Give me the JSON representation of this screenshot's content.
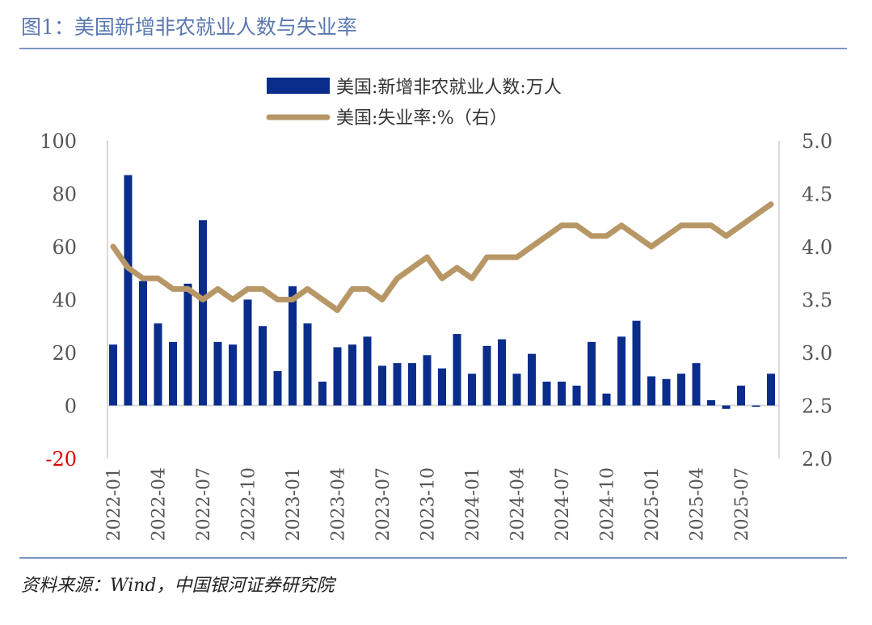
{
  "title": "图1：美国新增非农就业人数与失业率",
  "source": "资料来源：Wind，中国银河证券研究院",
  "chart_data": {
    "type": "bar+line",
    "legend": [
      "美国:新增非农就业人数:万人",
      "美国:失业率:%（右）"
    ],
    "legend_placement": "top",
    "categories": [
      "2022-01",
      "2022-02",
      "2022-03",
      "2022-04",
      "2022-05",
      "2022-06",
      "2022-07",
      "2022-08",
      "2022-09",
      "2022-10",
      "2022-11",
      "2022-12",
      "2023-01",
      "2023-02",
      "2023-03",
      "2023-04",
      "2023-05",
      "2023-06",
      "2023-07",
      "2023-08",
      "2023-09",
      "2023-10",
      "2023-11",
      "2023-12",
      "2024-01",
      "2024-02",
      "2024-03",
      "2024-04",
      "2024-05",
      "2024-06",
      "2024-07",
      "2024-08",
      "2024-09",
      "2024-10",
      "2024-11",
      "2024-12",
      "2025-01",
      "2025-02",
      "2025-03",
      "2025-04",
      "2025-05",
      "2025-06",
      "2025-07",
      "2025-08",
      "2025-09"
    ],
    "tick_labels": [
      "2022-01",
      "2022-04",
      "2022-07",
      "2022-10",
      "2023-01",
      "2023-04",
      "2023-07",
      "2023-10",
      "2024-01",
      "2024-04",
      "2024-07",
      "2024-10",
      "2025-01",
      "2025-04",
      "2025-07"
    ],
    "series": [
      {
        "name": "美国:新增非农就业人数:万人",
        "type": "bar",
        "axis": "left",
        "color": "#0a2d8c",
        "values": [
          23,
          87,
          47,
          31,
          24,
          46,
          70,
          24,
          23,
          40,
          30,
          13,
          45,
          31,
          9,
          22,
          23,
          26,
          15,
          16,
          16,
          19,
          14,
          27,
          12,
          22.5,
          25,
          12,
          19.5,
          9,
          9,
          7.5,
          24,
          4.5,
          26,
          32,
          11,
          10,
          12,
          16,
          2,
          -1.3,
          7.5,
          -0.5,
          12
        ]
      },
      {
        "name": "美国:失业率:%（右）",
        "type": "line",
        "axis": "right",
        "color": "#b89766",
        "values": [
          4.0,
          3.8,
          3.7,
          3.7,
          3.6,
          3.6,
          3.5,
          3.6,
          3.5,
          3.6,
          3.6,
          3.5,
          3.5,
          3.6,
          3.5,
          3.4,
          3.6,
          3.6,
          3.5,
          3.7,
          3.8,
          3.9,
          3.7,
          3.8,
          3.7,
          3.9,
          3.9,
          3.9,
          4.0,
          4.1,
          4.2,
          4.2,
          4.1,
          4.1,
          4.2,
          4.1,
          4.0,
          4.1,
          4.2,
          4.2,
          4.2,
          4.1,
          4.2,
          4.3,
          4.4
        ]
      }
    ],
    "y_left": {
      "ylim": [
        -20,
        100
      ],
      "ticks": [
        "100",
        "80",
        "60",
        "40",
        "20",
        "0",
        "-20"
      ],
      "negative_color": "#e00000"
    },
    "y_right": {
      "ylim": [
        2.0,
        5.0
      ],
      "ticks": [
        "5.0",
        "4.5",
        "4.0",
        "3.5",
        "3.0",
        "2.5",
        "2.0"
      ]
    },
    "grid": false
  }
}
